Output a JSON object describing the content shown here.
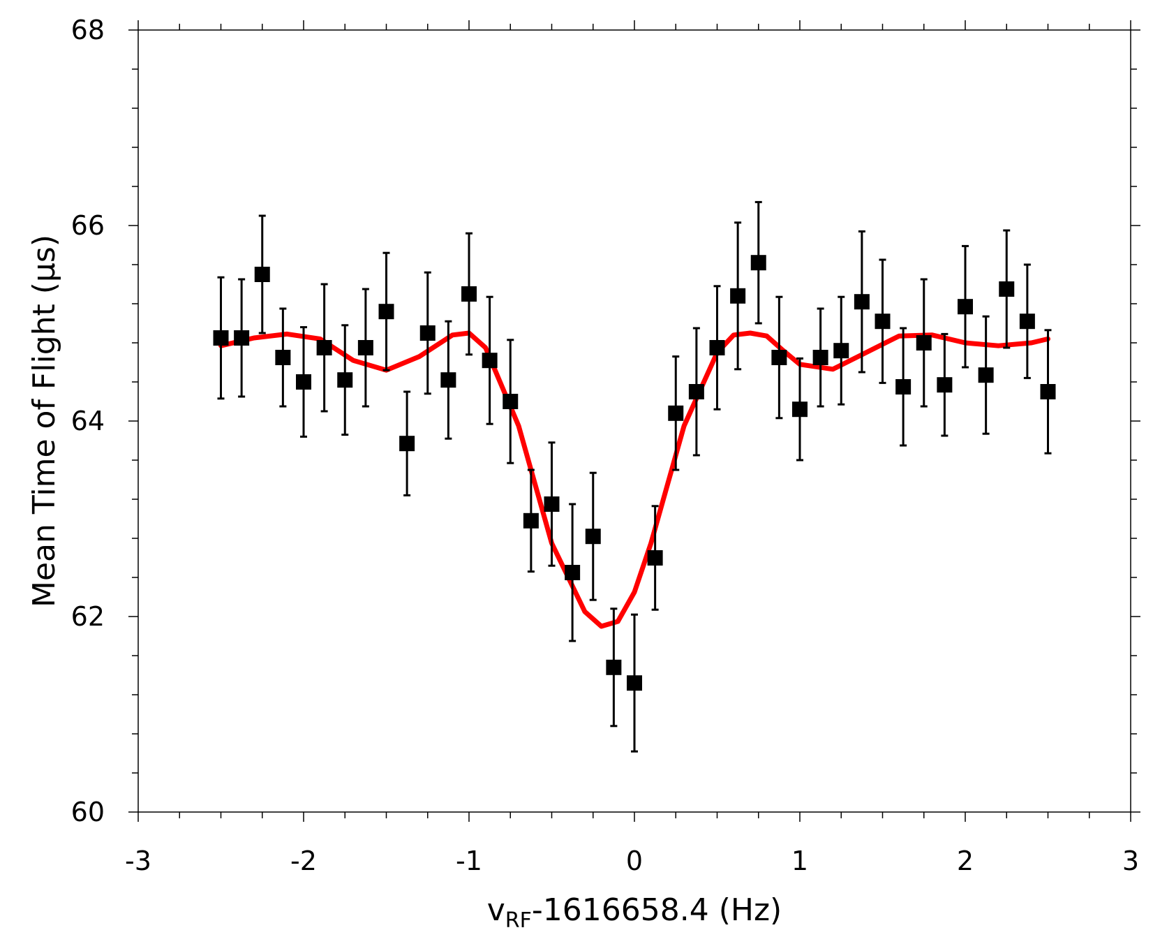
{
  "chart_data": {
    "type": "scatter",
    "title": "",
    "xlabel": {
      "main": "v",
      "subscript": "RF",
      "rest": "-1616658.4 (Hz)"
    },
    "ylabel": "Mean Time of Flight (μs)",
    "xlim": [
      -3,
      3
    ],
    "ylim": [
      60,
      68
    ],
    "x_ticks": [
      -3,
      -2,
      -1,
      0,
      1,
      2,
      3
    ],
    "x_tick_labels": [
      "-3",
      "-2",
      "-1",
      "0",
      "1",
      "2",
      "3"
    ],
    "y_ticks": [
      60,
      62,
      64,
      66,
      68
    ],
    "y_tick_labels": [
      "60",
      "62",
      "64",
      "66",
      "68"
    ],
    "grid": false,
    "legend": "none",
    "series": [
      {
        "kind": "points-with-error-bars",
        "color": "#000000",
        "marker": "square",
        "x": [
          -2.5,
          -2.375,
          -2.25,
          -2.125,
          -2.0,
          -1.875,
          -1.75,
          -1.625,
          -1.5,
          -1.375,
          -1.25,
          -1.125,
          -1.0,
          -0.875,
          -0.75,
          -0.625,
          -0.5,
          -0.375,
          -0.25,
          -0.125,
          0.0,
          0.125,
          0.25,
          0.375,
          0.5,
          0.625,
          0.75,
          0.875,
          1.0,
          1.125,
          1.25,
          1.375,
          1.5,
          1.625,
          1.75,
          1.875,
          2.0,
          2.125,
          2.25,
          2.375,
          2.5
        ],
        "y": [
          64.85,
          64.85,
          65.5,
          64.65,
          64.4,
          64.75,
          64.42,
          64.75,
          65.12,
          63.77,
          64.9,
          64.42,
          65.3,
          64.62,
          64.2,
          62.98,
          63.15,
          62.45,
          62.82,
          61.48,
          61.32,
          62.6,
          64.08,
          64.3,
          64.75,
          65.28,
          65.62,
          64.65,
          64.12,
          64.65,
          64.72,
          65.22,
          65.02,
          64.35,
          64.8,
          64.37,
          65.17,
          64.47,
          65.35,
          65.02,
          64.3
        ],
        "y_err": [
          0.62,
          0.6,
          0.6,
          0.5,
          0.56,
          0.65,
          0.56,
          0.6,
          0.6,
          0.53,
          0.62,
          0.6,
          0.62,
          0.65,
          0.63,
          0.52,
          0.63,
          0.7,
          0.65,
          0.6,
          0.7,
          0.53,
          0.58,
          0.65,
          0.63,
          0.75,
          0.62,
          0.62,
          0.52,
          0.5,
          0.55,
          0.72,
          0.63,
          0.6,
          0.65,
          0.52,
          0.62,
          0.6,
          0.6,
          0.58,
          0.63
        ]
      },
      {
        "kind": "fit-line",
        "color": "#ff0000",
        "x": [
          -2.5,
          -2.3,
          -2.1,
          -1.9,
          -1.7,
          -1.5,
          -1.3,
          -1.1,
          -1.0,
          -0.9,
          -0.7,
          -0.5,
          -0.3,
          -0.2,
          -0.1,
          0.0,
          0.1,
          0.3,
          0.5,
          0.6,
          0.7,
          0.8,
          0.9,
          1.0,
          1.2,
          1.4,
          1.6,
          1.8,
          2.0,
          2.2,
          2.4,
          2.5
        ],
        "y": [
          64.77,
          64.85,
          64.89,
          64.84,
          64.62,
          64.52,
          64.66,
          64.88,
          64.9,
          64.75,
          63.95,
          62.75,
          62.05,
          61.9,
          61.95,
          62.25,
          62.75,
          63.95,
          64.7,
          64.88,
          64.9,
          64.87,
          64.72,
          64.58,
          64.53,
          64.7,
          64.87,
          64.88,
          64.8,
          64.77,
          64.8,
          64.84
        ]
      }
    ]
  }
}
